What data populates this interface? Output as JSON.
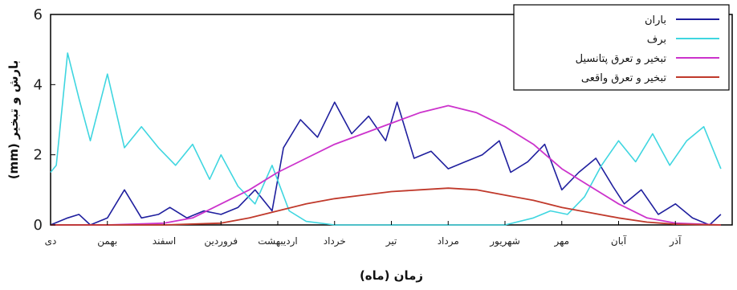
{
  "chart_data": {
    "type": "line",
    "title": "",
    "xlabel": "زمان (ماه)",
    "ylabel": "بارش و تبخیر (mm)",
    "ylim": [
      0,
      6
    ],
    "yticks": [
      0,
      2,
      4,
      6
    ],
    "grid": false,
    "legend_position": "top-right",
    "months": [
      "دی",
      "بهمن",
      "اسفند",
      "فروردین",
      "اردیبهشت",
      "خرداد",
      "تیر",
      "مرداد",
      "شهریور",
      "مهر",
      "آبان",
      "آذر"
    ],
    "series": [
      {
        "name": "باران",
        "color": "#1f1f9e",
        "x": [
          0,
          0.3,
          0.5,
          0.7,
          1.0,
          1.3,
          1.6,
          1.9,
          2.1,
          2.4,
          2.7,
          3.0,
          3.3,
          3.6,
          3.9,
          4.1,
          4.4,
          4.7,
          5.0,
          5.3,
          5.6,
          5.9,
          6.1,
          6.4,
          6.7,
          7.0,
          7.3,
          7.6,
          7.9,
          8.1,
          8.4,
          8.7,
          9.0,
          9.3,
          9.6,
          9.9,
          10.1,
          10.4,
          10.7,
          11.0,
          11.3,
          11.6,
          11.8
        ],
        "values": [
          0,
          0.2,
          0.3,
          0,
          0.2,
          1.0,
          0.2,
          0.3,
          0.5,
          0.2,
          0.4,
          0.3,
          0.5,
          1.0,
          0.4,
          2.2,
          3.0,
          2.5,
          3.5,
          2.6,
          3.1,
          2.4,
          3.5,
          1.9,
          2.1,
          1.6,
          1.8,
          2.0,
          2.4,
          1.5,
          1.8,
          2.3,
          1.0,
          1.5,
          1.9,
          1.1,
          0.6,
          1.0,
          0.3,
          0.6,
          0.2,
          0,
          0.3
        ]
      },
      {
        "name": "برف",
        "color": "#3fd6e0",
        "x": [
          0,
          0.1,
          0.3,
          0.5,
          0.7,
          1.0,
          1.3,
          1.6,
          1.9,
          2.2,
          2.5,
          2.8,
          3.0,
          3.3,
          3.6,
          3.9,
          4.2,
          4.5,
          5.0,
          5.5,
          6.0,
          6.5,
          7.0,
          7.5,
          8.0,
          8.5,
          8.8,
          9.1,
          9.4,
          9.7,
          10.0,
          10.3,
          10.6,
          10.9,
          11.2,
          11.5,
          11.8
        ],
        "values": [
          1.5,
          1.7,
          4.9,
          3.6,
          2.4,
          4.3,
          2.2,
          2.8,
          2.2,
          1.7,
          2.3,
          1.3,
          2.0,
          1.1,
          0.6,
          1.7,
          0.4,
          0.1,
          0,
          0,
          0,
          0,
          0,
          0,
          0,
          0.2,
          0.4,
          0.3,
          0.8,
          1.7,
          2.4,
          1.8,
          2.6,
          1.7,
          2.4,
          2.8,
          1.6
        ]
      },
      {
        "name": "تبخیر و تعرق پتانسیل",
        "color": "#cc33cc",
        "x": [
          0,
          1,
          2,
          2.5,
          3,
          3.5,
          4,
          4.5,
          5,
          5.5,
          6,
          6.5,
          7,
          7.5,
          8,
          8.5,
          9,
          9.5,
          10,
          10.5,
          11,
          11.8
        ],
        "values": [
          0,
          0,
          0.05,
          0.2,
          0.6,
          1.0,
          1.5,
          1.9,
          2.3,
          2.6,
          2.9,
          3.2,
          3.4,
          3.2,
          2.8,
          2.3,
          1.6,
          1.1,
          0.6,
          0.2,
          0.05,
          0
        ]
      },
      {
        "name": "تبخیر و تعرق واقعی",
        "color": "#c0392b",
        "x": [
          0,
          1,
          2,
          3,
          3.5,
          4,
          4.5,
          5,
          5.5,
          6,
          6.5,
          7,
          7.5,
          8,
          8.5,
          9,
          9.5,
          10,
          10.5,
          11,
          11.8
        ],
        "values": [
          0,
          0,
          0,
          0.05,
          0.2,
          0.4,
          0.6,
          0.75,
          0.85,
          0.95,
          1.0,
          1.05,
          1.0,
          0.85,
          0.7,
          0.5,
          0.35,
          0.2,
          0.08,
          0.02,
          0
        ]
      }
    ]
  }
}
